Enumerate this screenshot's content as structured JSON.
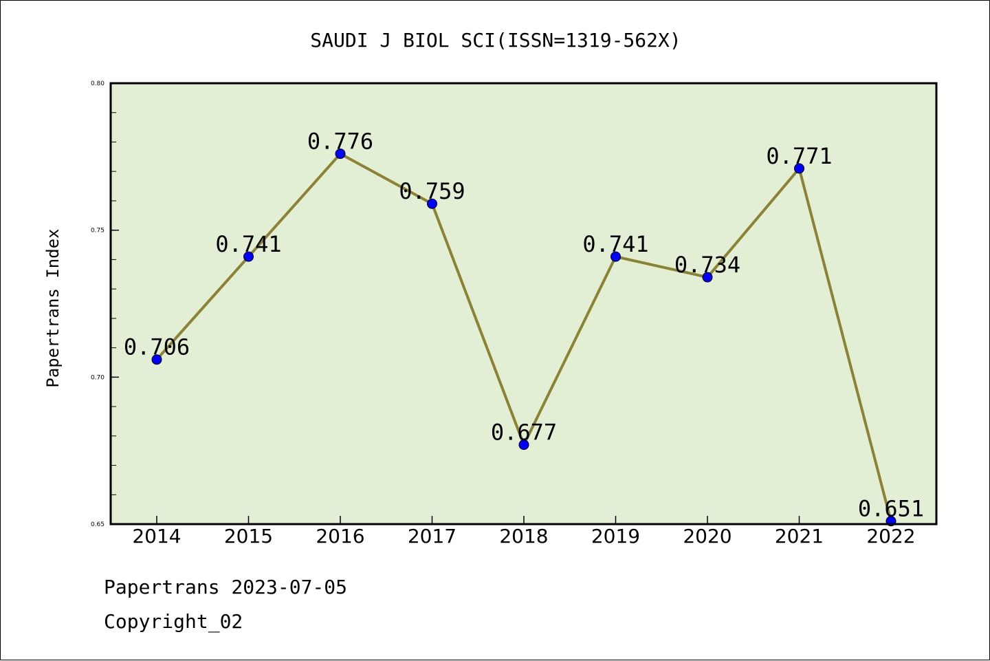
{
  "chart_data": {
    "type": "line",
    "title": "SAUDI J BIOL SCI(ISSN=1319-562X)",
    "xlabel": "",
    "ylabel": "Papertrans Index",
    "categories": [
      "2014",
      "2015",
      "2016",
      "2017",
      "2018",
      "2019",
      "2020",
      "2021",
      "2022"
    ],
    "values": [
      0.706,
      0.741,
      0.776,
      0.759,
      0.677,
      0.741,
      0.734,
      0.771,
      0.651
    ],
    "data_labels": [
      "0.706",
      "0.741",
      "0.776",
      "0.759",
      "0.677",
      "0.741",
      "0.734",
      "0.771",
      "0.651"
    ],
    "ylim": [
      0.65,
      0.8
    ],
    "yticks": [
      0.65,
      0.7,
      0.75,
      0.8
    ],
    "ytick_labels": [
      "0.65",
      "0.70",
      "0.75",
      "0.80"
    ],
    "grid": false,
    "colors": {
      "plot_background": "#e2efd4",
      "line": "#8b8234",
      "marker": "#0000ff"
    }
  },
  "footer": {
    "line1": "Papertrans 2023-07-05",
    "line2": "Copyright_02"
  }
}
